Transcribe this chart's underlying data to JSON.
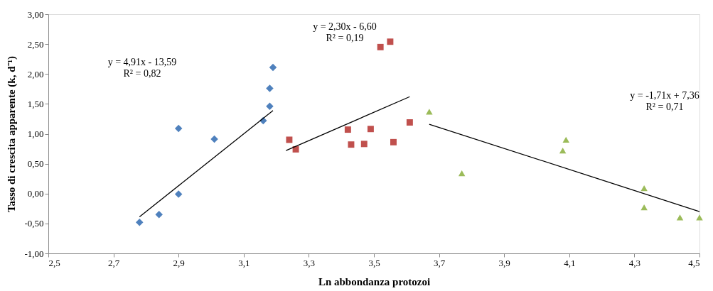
{
  "chart_data": {
    "type": "scatter",
    "xlabel": "Ln abbondanza protozoi",
    "ylabel": "Tasso di crescita apparente (k, d⁻¹)",
    "xlim": [
      2.5,
      4.5
    ],
    "xticks": [
      {
        "value": 2.5,
        "label": "2,5"
      },
      {
        "value": 2.7,
        "label": "2,7"
      },
      {
        "value": 2.9,
        "label": "2,9"
      },
      {
        "value": 3.1,
        "label": "3,1"
      },
      {
        "value": 3.3,
        "label": "3,3"
      },
      {
        "value": 3.5,
        "label": "3,5"
      },
      {
        "value": 3.7,
        "label": "3,7"
      },
      {
        "value": 3.9,
        "label": "3,9"
      },
      {
        "value": 4.1,
        "label": "4,1"
      },
      {
        "value": 4.3,
        "label": "4,3"
      },
      {
        "value": 4.5,
        "label": "4,5"
      }
    ],
    "ylim": [
      -1,
      3
    ],
    "yticks": [
      {
        "value": -1,
        "label": "-1,00"
      },
      {
        "value": -0.5,
        "label": "-0,50"
      },
      {
        "value": 0,
        "label": "0,00"
      },
      {
        "value": 0.5,
        "label": "0,50"
      },
      {
        "value": 1,
        "label": "1,00"
      },
      {
        "value": 1.5,
        "label": "1,50"
      },
      {
        "value": 2,
        "label": "2,00"
      },
      {
        "value": 2.5,
        "label": "2,50"
      },
      {
        "value": 3,
        "label": "3,00"
      }
    ],
    "grid": false,
    "legend": false,
    "series": [
      {
        "marker": "diamond",
        "color": "#4f81bd",
        "x": [
          2.78,
          2.84,
          2.9,
          2.9,
          3.01,
          3.16,
          3.18,
          3.18,
          3.19
        ],
        "values": [
          -0.48,
          -0.35,
          1.09,
          -0.01,
          0.91,
          1.22,
          1.76,
          1.46,
          2.11
        ]
      },
      {
        "marker": "square",
        "color": "#c0504d",
        "x": [
          3.24,
          3.26,
          3.42,
          3.43,
          3.47,
          3.49,
          3.52,
          3.55,
          3.56,
          3.61
        ],
        "values": [
          0.9,
          0.74,
          1.07,
          0.82,
          0.83,
          1.08,
          2.45,
          2.54,
          0.86,
          1.19
        ]
      },
      {
        "marker": "triangle",
        "color": "#9bbb59",
        "x": [
          3.67,
          3.77,
          4.08,
          4.09,
          4.33,
          4.33,
          4.44,
          4.5
        ],
        "values": [
          1.37,
          0.34,
          0.72,
          0.9,
          0.09,
          -0.23,
          -0.4,
          -0.4
        ]
      },
      {
        "type": "line",
        "marker": "none",
        "color": "#000000",
        "x": [
          2.78,
          3.19
        ],
        "values": [
          -0.39,
          1.39
        ]
      },
      {
        "type": "line",
        "marker": "none",
        "color": "#000000",
        "x": [
          3.23,
          3.61
        ],
        "values": [
          0.72,
          1.62
        ]
      },
      {
        "type": "line",
        "marker": "none",
        "color": "#000000",
        "x": [
          3.67,
          4.5
        ],
        "values": [
          1.16,
          -0.3
        ]
      }
    ],
    "annotations": [
      "y = 4,91x - 13,59\nR² = 0,82",
      "y = 2,30x - 6,60\nR² = 0,19",
      "y = -1,71x + 7,36\nR² = 0,71"
    ]
  }
}
